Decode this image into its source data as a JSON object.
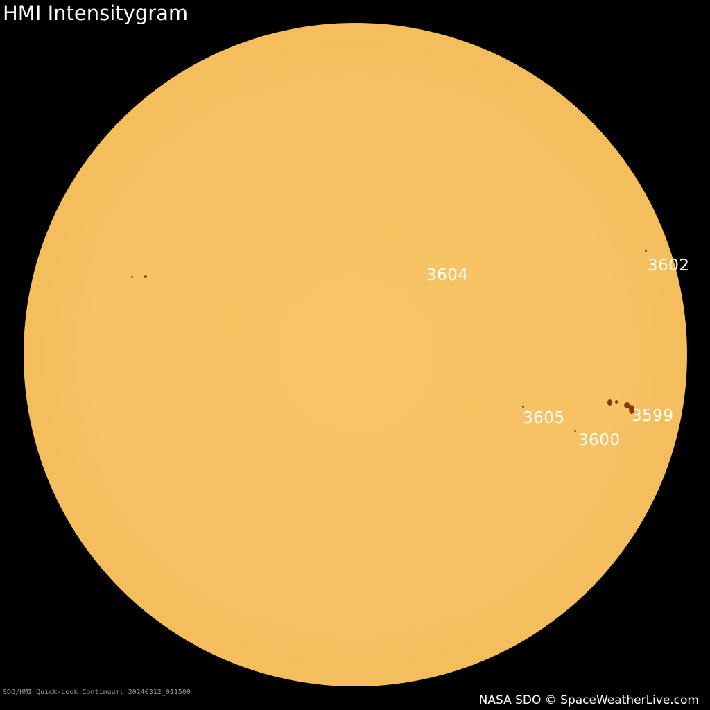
{
  "title": "HMI Intensitygram",
  "regions": [
    {
      "id": "3604"
    },
    {
      "id": "3602"
    },
    {
      "id": "3605"
    },
    {
      "id": "3599"
    },
    {
      "id": "3600"
    }
  ],
  "colors": {
    "disk": "#f6c263",
    "sunspot": "#8a3a10",
    "background": "#000000"
  },
  "footer": {
    "source": "SDO/HMI Quick-Look Continuum: 20240312_011500",
    "credit": "NASA SDO © SpaceWeatherLive.com"
  }
}
